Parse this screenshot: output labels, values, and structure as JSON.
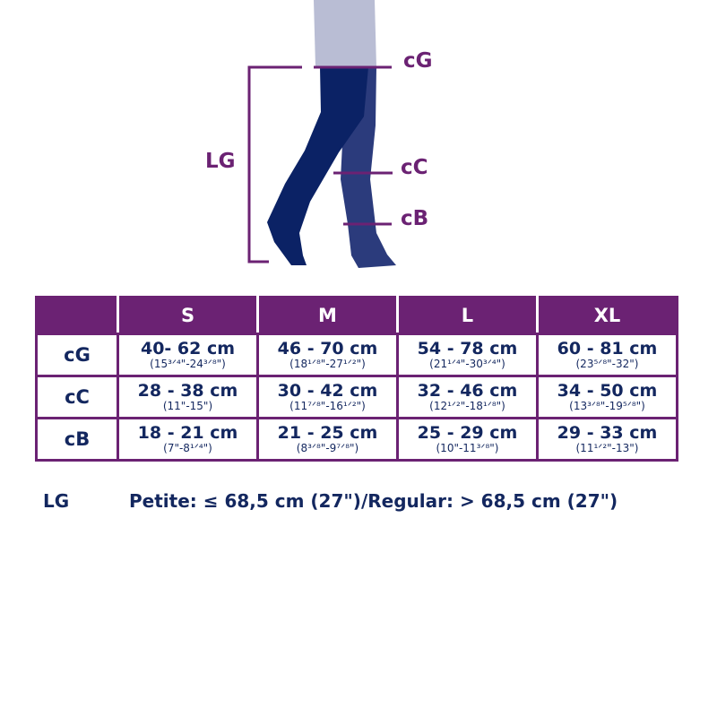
{
  "diagram": {
    "labels": {
      "cG": "cG",
      "cC": "cC",
      "cB": "cB",
      "LG": "LG"
    },
    "colors": {
      "accent": "#6b2273",
      "front_leg": "#0b2265",
      "back_leg": "#2b3b7c",
      "skin": "#b9bdd4",
      "text": "#13275f"
    }
  },
  "table": {
    "headers": [
      "",
      "S",
      "M",
      "L",
      "XL"
    ],
    "rows": [
      {
        "label": "cG",
        "cells": [
          {
            "cm": "40- 62 cm",
            "in": "(15³ᐟ⁴\"-24³ᐟ⁸\")"
          },
          {
            "cm": "46 - 70 cm",
            "in": "(18¹ᐟ⁸\"-27¹ᐟ²\")"
          },
          {
            "cm": "54 - 78 cm",
            "in": "(21¹ᐟ⁴\"-30³ᐟ⁴\")"
          },
          {
            "cm": "60 - 81 cm",
            "in": "(23⁵ᐟ⁸\"-32\")"
          }
        ]
      },
      {
        "label": "cC",
        "cells": [
          {
            "cm": "28 - 38 cm",
            "in": "(11\"-15\")"
          },
          {
            "cm": "30 - 42 cm",
            "in": "(11⁷ᐟ⁸\"-16¹ᐟ²\")"
          },
          {
            "cm": "32 - 46 cm",
            "in": "(12¹ᐟ²\"-18¹ᐟ⁸\")"
          },
          {
            "cm": "34 - 50 cm",
            "in": "(13³ᐟ⁸\"-19⁵ᐟ⁸\")"
          }
        ]
      },
      {
        "label": "cB",
        "cells": [
          {
            "cm": "18 - 21 cm",
            "in": "(7\"-8¹ᐟ⁴\")"
          },
          {
            "cm": "21 - 25 cm",
            "in": "(8³ᐟ⁸\"-9⁷ᐟ⁸\")"
          },
          {
            "cm": "25 - 29 cm",
            "in": "(10\"-11³ᐟ⁸\")"
          },
          {
            "cm": "29 - 33 cm",
            "in": "(11¹ᐟ²\"-13\")"
          }
        ]
      }
    ]
  },
  "footer": {
    "label": "LG",
    "text": "Petite: ≤ 68,5 cm (27\")/Regular: > 68,5 cm (27\")"
  }
}
